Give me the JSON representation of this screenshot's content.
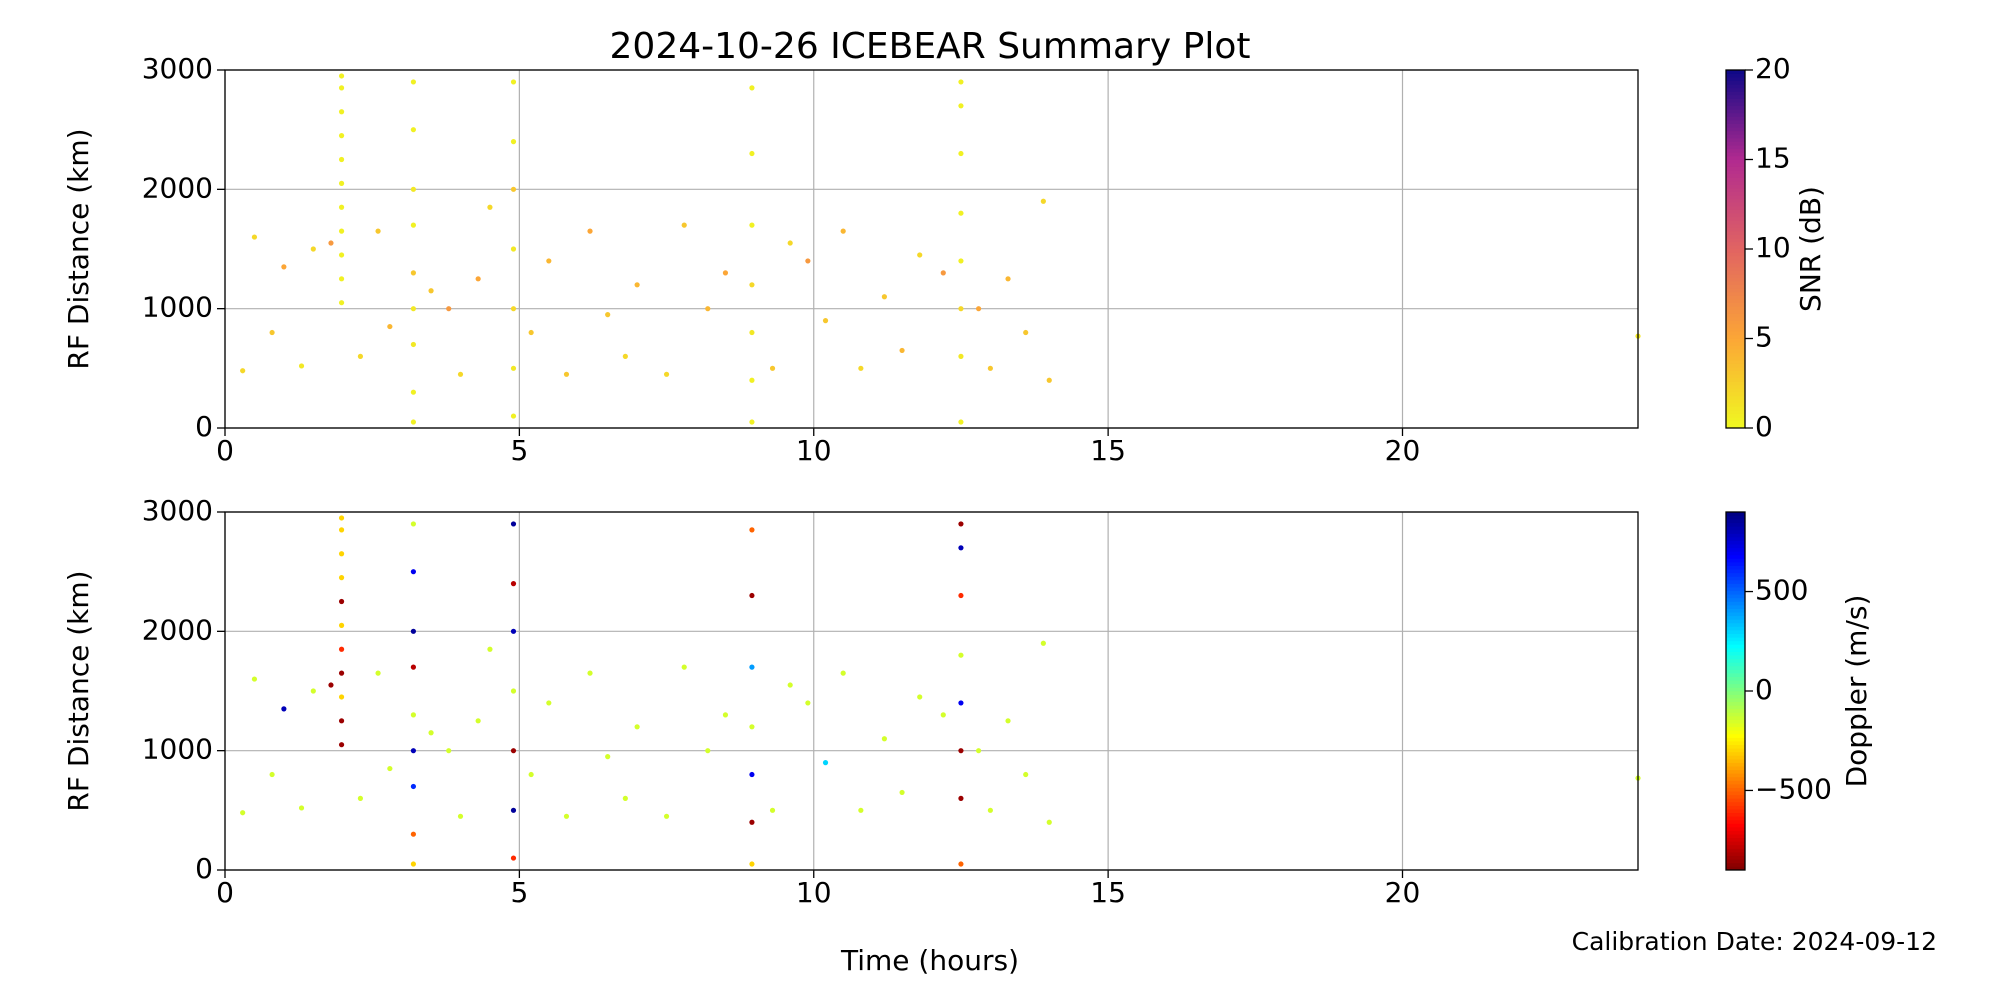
{
  "title": "2024-10-26 ICEBEAR Summary Plot",
  "xlabel": "Time (hours)",
  "annotation": "Calibration Date: 2024-09-12",
  "chart_data": [
    {
      "type": "scatter",
      "ylabel": "RF Distance (km)",
      "xlim": [
        0,
        24
      ],
      "xticks": [
        0,
        5,
        10,
        15,
        20
      ],
      "ylim": [
        0,
        3000
      ],
      "yticks": [
        0,
        1000,
        2000,
        3000
      ],
      "grid": true,
      "colormap": "plasma_r",
      "colorbar": {
        "label": "SNR (dB)",
        "lim": [
          0,
          20
        ],
        "ticks": [
          0,
          5,
          10,
          15,
          20
        ]
      },
      "x": [
        1.98,
        1.98,
        1.98,
        1.98,
        1.98,
        1.98,
        1.98,
        1.98,
        1.98,
        1.98,
        1.98,
        3.2,
        3.2,
        3.2,
        3.2,
        3.2,
        3.2,
        3.2,
        3.2,
        3.2,
        4.9,
        4.9,
        4.9,
        4.9,
        4.9,
        4.9,
        4.9,
        8.95,
        8.95,
        8.95,
        8.95,
        8.95,
        8.95,
        8.95,
        12.5,
        12.5,
        12.5,
        12.5,
        12.5,
        12.5,
        12.5,
        12.5,
        0.3,
        0.5,
        0.8,
        1.0,
        1.3,
        1.5,
        1.8,
        2.3,
        2.6,
        2.8,
        3.5,
        3.8,
        4.0,
        4.3,
        4.5,
        5.2,
        5.5,
        5.8,
        6.2,
        6.5,
        6.8,
        7.0,
        7.5,
        7.8,
        8.2,
        8.5,
        9.3,
        9.6,
        9.9,
        10.2,
        10.5,
        10.8,
        11.2,
        11.5,
        11.8,
        12.2,
        12.8,
        13.0,
        13.3,
        13.6,
        13.9,
        14.0,
        24.0
      ],
      "y": [
        1050,
        1250,
        1450,
        1650,
        1850,
        2050,
        2250,
        2450,
        2650,
        2850,
        2950,
        50,
        300,
        700,
        1000,
        1300,
        1700,
        2000,
        2500,
        2900,
        100,
        500,
        1000,
        1500,
        2000,
        2400,
        2900,
        50,
        400,
        800,
        1200,
        1700,
        2300,
        2850,
        50,
        600,
        1000,
        1400,
        1800,
        2300,
        2700,
        2900,
        480,
        1600,
        800,
        1350,
        520,
        1500,
        1550,
        600,
        1650,
        850,
        1150,
        1000,
        450,
        1250,
        1850,
        800,
        1400,
        450,
        1650,
        950,
        600,
        1200,
        450,
        1700,
        1000,
        1300,
        500,
        1550,
        1400,
        900,
        1650,
        500,
        1100,
        650,
        1450,
        1300,
        1000,
        500,
        1250,
        800,
        1900,
        400,
        770
      ],
      "c": [
        0.5,
        0.5,
        0.5,
        0.5,
        0.5,
        0.5,
        0.5,
        0.5,
        0.5,
        0.5,
        0.5,
        0.5,
        0.5,
        1,
        1,
        3,
        0.5,
        1,
        0.5,
        0.5,
        0.5,
        1,
        2,
        1,
        3,
        0.5,
        0.5,
        0.5,
        0.5,
        1,
        2,
        0.5,
        0.5,
        0.5,
        0.5,
        1,
        2,
        0.5,
        0.5,
        0.5,
        0.5,
        0.5,
        2,
        2,
        3,
        5,
        1,
        2,
        6,
        2,
        3,
        4,
        3,
        6,
        2,
        5,
        2,
        3,
        4,
        3,
        5,
        3,
        2,
        4,
        2,
        3,
        4,
        5,
        3,
        2,
        6,
        3,
        4,
        2,
        3,
        4,
        2,
        6,
        5,
        3,
        4,
        3,
        2,
        3,
        1
      ]
    },
    {
      "type": "scatter",
      "ylabel": "RF Distance (km)",
      "xlim": [
        0,
        24
      ],
      "xticks": [
        0,
        5,
        10,
        15,
        20
      ],
      "ylim": [
        0,
        3000
      ],
      "yticks": [
        0,
        1000,
        2000,
        3000
      ],
      "grid": true,
      "colormap": "jet_r",
      "colorbar": {
        "label": "Doppler (m/s)",
        "lim": [
          -900,
          900
        ],
        "ticks": [
          {
            "value": -500,
            "label": "−500"
          },
          0,
          500
        ]
      },
      "x": [
        1.98,
        1.98,
        1.98,
        1.98,
        1.98,
        1.98,
        1.98,
        1.98,
        1.98,
        1.98,
        1.98,
        3.2,
        3.2,
        3.2,
        3.2,
        3.2,
        3.2,
        3.2,
        3.2,
        3.2,
        4.9,
        4.9,
        4.9,
        4.9,
        4.9,
        4.9,
        4.9,
        8.95,
        8.95,
        8.95,
        8.95,
        8.95,
        8.95,
        8.95,
        12.5,
        12.5,
        12.5,
        12.5,
        12.5,
        12.5,
        12.5,
        12.5,
        0.3,
        0.5,
        0.8,
        1.0,
        1.3,
        1.5,
        1.8,
        2.3,
        2.6,
        2.8,
        3.5,
        3.8,
        4.0,
        4.3,
        4.5,
        5.2,
        5.5,
        5.8,
        6.2,
        6.5,
        6.8,
        7.0,
        7.5,
        7.8,
        8.2,
        8.5,
        9.3,
        9.6,
        9.9,
        10.2,
        10.5,
        10.8,
        11.2,
        11.5,
        11.8,
        12.2,
        12.8,
        13.0,
        13.3,
        13.6,
        13.9,
        14.0,
        24.0
      ],
      "y": [
        1050,
        1250,
        1450,
        1650,
        1850,
        2050,
        2250,
        2450,
        2650,
        2850,
        2950,
        50,
        300,
        700,
        1000,
        1300,
        1700,
        2000,
        2500,
        2900,
        100,
        500,
        1000,
        1500,
        2000,
        2400,
        2900,
        50,
        400,
        800,
        1200,
        1700,
        2300,
        2850,
        50,
        600,
        1000,
        1400,
        1800,
        2300,
        2700,
        2900,
        480,
        1600,
        800,
        1350,
        520,
        1500,
        1550,
        600,
        1650,
        850,
        1150,
        1000,
        450,
        1250,
        1850,
        800,
        1400,
        450,
        1650,
        950,
        600,
        1200,
        450,
        1700,
        1000,
        1300,
        500,
        1550,
        1400,
        900,
        1650,
        500,
        1100,
        650,
        1450,
        1300,
        1000,
        500,
        1250,
        800,
        1900,
        400,
        770
      ],
      "c": [
        -850,
        -850,
        -300,
        -850,
        -600,
        -300,
        -850,
        -300,
        -300,
        -300,
        -300,
        -300,
        -500,
        600,
        800,
        -150,
        -800,
        850,
        700,
        -150,
        -600,
        850,
        -850,
        -150,
        800,
        -800,
        850,
        -300,
        -850,
        700,
        -150,
        400,
        -850,
        -500,
        -500,
        -850,
        -850,
        700,
        -150,
        -600,
        800,
        -850,
        -150,
        -150,
        -150,
        800,
        -150,
        -150,
        -850,
        -150,
        -150,
        -150,
        -150,
        -150,
        -150,
        -150,
        -150,
        -150,
        -150,
        -150,
        -150,
        -150,
        -150,
        -150,
        -150,
        -150,
        -150,
        -150,
        -150,
        -150,
        -150,
        300,
        -150,
        -150,
        -150,
        -150,
        -150,
        -150,
        -150,
        -150,
        -150,
        -150,
        -150,
        -150,
        -150
      ]
    }
  ]
}
